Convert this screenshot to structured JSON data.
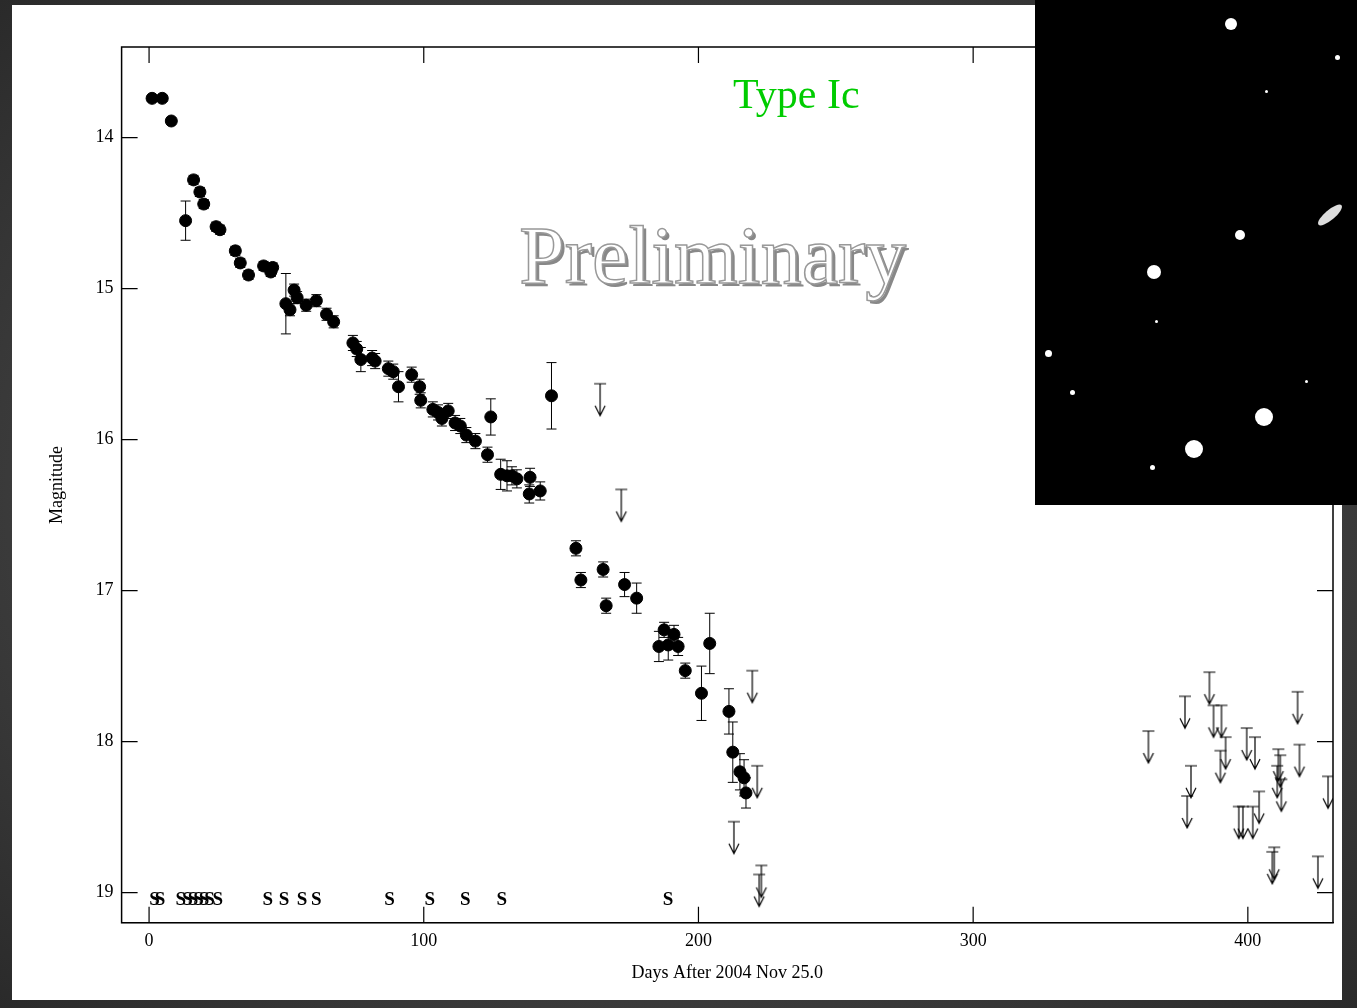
{
  "chart_data": {
    "type": "scatter",
    "title": "Type Ic",
    "annotation": "Preliminary",
    "x_label": "Days After 2004 Nov 25.0",
    "y_label": "Magnitude",
    "xlim": [
      -10,
      431
    ],
    "ylim": [
      19.2,
      13.4
    ],
    "xticks": [
      0,
      100,
      200,
      300,
      400
    ],
    "yticks": [
      14,
      15,
      16,
      17,
      18,
      19
    ],
    "grid": false,
    "detections": {
      "marker": "circle",
      "color": "#000000",
      "x": [
        1.1,
        4.8,
        8.1,
        13.3,
        16.2,
        18.5,
        19.9,
        24.4,
        25.8,
        31.4,
        33.2,
        36.2,
        41.7,
        44.3,
        45.0,
        49.8,
        51.3,
        52.8,
        53.9,
        57.2,
        60.9,
        64.6,
        67.2,
        74.2,
        75.6,
        77.1,
        81.2,
        82.3,
        87.1,
        88.9,
        90.8,
        95.6,
        98.5,
        98.9,
        103.3,
        105.2,
        106.6,
        108.9,
        111.4,
        113.3,
        115.5,
        118.8,
        123.2,
        124.4,
        128.0,
        130.3,
        132.1,
        133.9,
        138.7,
        138.4,
        142.4,
        146.5,
        155.4,
        157.2,
        165.3,
        166.4,
        173.1,
        177.5,
        185.6,
        187.5,
        189.0,
        191.1,
        192.6,
        195.2,
        201.1,
        204.1,
        211.1,
        212.5,
        215.1,
        216.6,
        217.3
      ],
      "values": [
        13.74,
        13.74,
        13.89,
        14.55,
        14.28,
        14.36,
        14.44,
        14.59,
        14.61,
        14.75,
        14.83,
        14.91,
        14.85,
        14.89,
        14.86,
        15.1,
        15.14,
        15.01,
        15.06,
        15.11,
        15.08,
        15.17,
        15.22,
        15.36,
        15.4,
        15.47,
        15.46,
        15.48,
        15.53,
        15.55,
        15.65,
        15.57,
        15.65,
        15.74,
        15.8,
        15.82,
        15.86,
        15.81,
        15.89,
        15.91,
        15.97,
        16.01,
        16.1,
        15.85,
        16.23,
        16.24,
        16.24,
        16.26,
        16.25,
        16.36,
        16.34,
        15.71,
        16.72,
        16.93,
        16.86,
        17.1,
        16.96,
        17.05,
        17.37,
        17.26,
        17.36,
        17.29,
        17.37,
        17.53,
        17.68,
        17.35,
        17.8,
        18.07,
        18.2,
        18.24,
        18.34
      ],
      "errors": [
        0.02,
        0.02,
        0.02,
        0.13,
        0.03,
        0.03,
        0.03,
        0.03,
        0.03,
        0.03,
        0.03,
        0.03,
        0.03,
        0.03,
        0.03,
        0.2,
        0.04,
        0.04,
        0.04,
        0.04,
        0.04,
        0.04,
        0.04,
        0.05,
        0.05,
        0.08,
        0.05,
        0.05,
        0.05,
        0.05,
        0.1,
        0.05,
        0.05,
        0.05,
        0.05,
        0.05,
        0.05,
        0.05,
        0.05,
        0.05,
        0.05,
        0.05,
        0.05,
        0.12,
        0.1,
        0.1,
        0.06,
        0.06,
        0.06,
        0.06,
        0.06,
        0.22,
        0.05,
        0.05,
        0.05,
        0.05,
        0.08,
        0.1,
        0.1,
        0.05,
        0.1,
        0.06,
        0.06,
        0.05,
        0.18,
        0.2,
        0.15,
        0.2,
        0.12,
        0.12,
        0.1
      ]
    },
    "upper_limits": {
      "marker": "arrow",
      "color": "#000000",
      "x": [
        164.2,
        171.9,
        219.6,
        221.4,
        212.9,
        222.9,
        222.1,
        363.8,
        377.1,
        379.3,
        377.9,
        386.0,
        387.5,
        390.4,
        390.0,
        391.9,
        396.7,
        398.2,
        399.6,
        402.6,
        401.8,
        404.1,
        408.9,
        409.6,
        411.1,
        411.8,
        410.7,
        412.2,
        418.1,
        418.8,
        425.5,
        429.2
      ],
      "values": [
        15.63,
        16.33,
        17.53,
        18.16,
        18.53,
        18.82,
        18.88,
        17.93,
        17.7,
        18.16,
        18.36,
        17.54,
        17.76,
        17.76,
        18.06,
        17.97,
        18.43,
        18.43,
        17.91,
        17.97,
        18.43,
        18.33,
        18.73,
        18.7,
        18.05,
        18.09,
        18.16,
        18.25,
        17.67,
        18.02,
        18.76,
        18.23
      ]
    },
    "spectra": {
      "label": "S",
      "magnitude": 19.05,
      "x": [
        2,
        4,
        11.5,
        14,
        16,
        18,
        20,
        22,
        25,
        43.2,
        49.1,
        55.7,
        60.9,
        87.5,
        102.2,
        115.1,
        128.4,
        188.9
      ]
    }
  }
}
